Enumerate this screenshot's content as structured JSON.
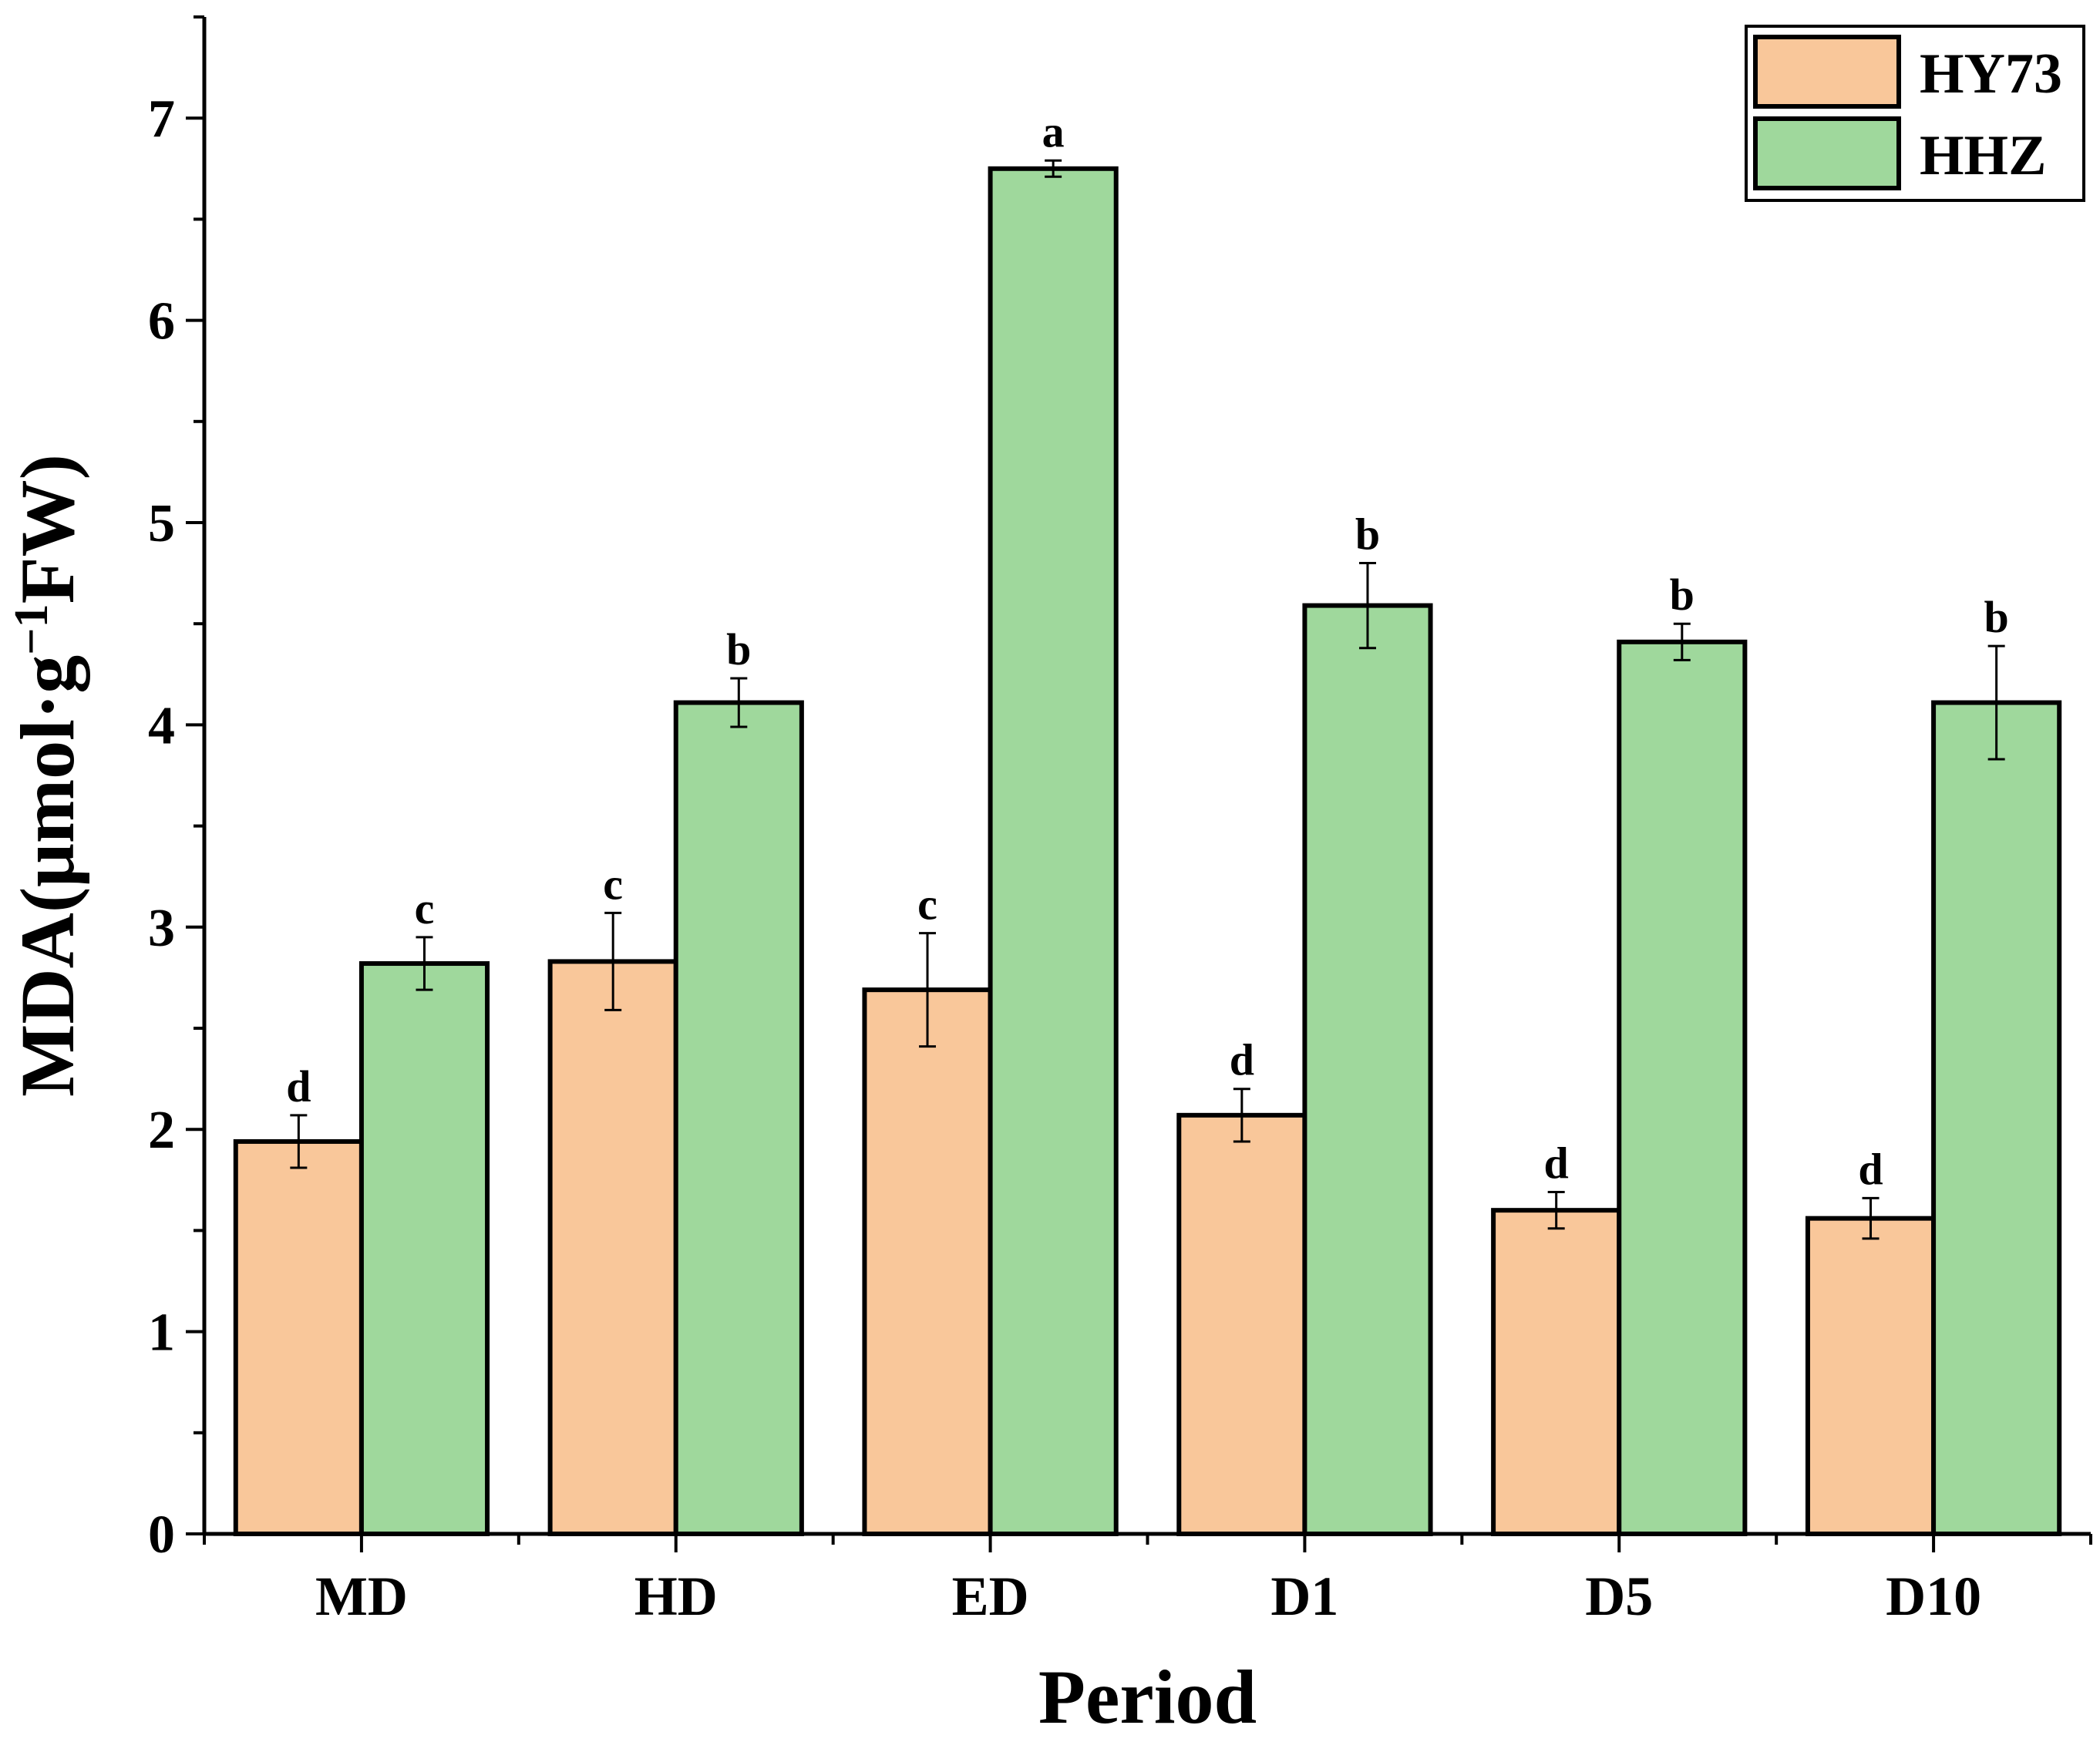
{
  "chart_data": {
    "type": "bar",
    "xlabel": "Period",
    "ylabel_main": "MDA(μmol·g",
    "ylabel_sup": "−1",
    "ylabel_tail": "FW)",
    "ylim": [
      0,
      7.5
    ],
    "yticks": [
      "0",
      "1",
      "2",
      "3",
      "4",
      "5",
      "6",
      "7"
    ],
    "categories": [
      "MD",
      "HD",
      "ED",
      "D1",
      "D5",
      "D10"
    ],
    "legend_position": "top-right",
    "series": [
      {
        "name": "HY73",
        "color": "#f9c79a",
        "values": [
          1.94,
          2.83,
          2.69,
          2.07,
          1.6,
          1.56
        ],
        "errors": [
          0.13,
          0.24,
          0.28,
          0.13,
          0.09,
          0.1
        ],
        "letters": [
          "d",
          "c",
          "c",
          "d",
          "d",
          "d"
        ]
      },
      {
        "name": "HHZ",
        "color": "#9fd89c",
        "values": [
          2.82,
          4.11,
          6.75,
          4.59,
          4.41,
          4.11
        ],
        "errors": [
          0.13,
          0.12,
          0.04,
          0.21,
          0.09,
          0.28
        ],
        "letters": [
          "c",
          "b",
          "a",
          "b",
          "b",
          "b"
        ]
      }
    ]
  }
}
